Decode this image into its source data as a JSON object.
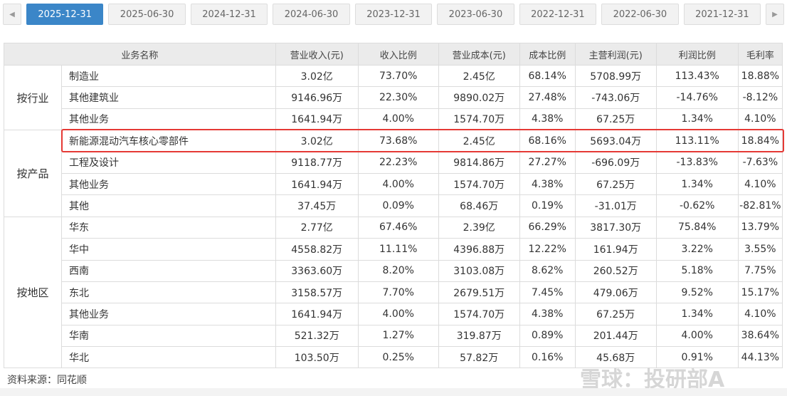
{
  "tabs": {
    "prev": "◀",
    "next": "▶",
    "items": [
      "2025-12-31",
      "2025-06-30",
      "2024-12-31",
      "2024-06-30",
      "2023-12-31",
      "2023-06-30",
      "2022-12-31",
      "2022-06-30",
      "2021-12-31"
    ],
    "active": "2025-12-31"
  },
  "table": {
    "headers": [
      "业务名称",
      "营业收入(元)",
      "收入比例",
      "营业成本(元)",
      "成本比例",
      "主营利润(元)",
      "利润比例",
      "毛利率"
    ],
    "groups": [
      {
        "label": "按行业",
        "rows": [
          [
            "制造业",
            "3.02亿",
            "73.70%",
            "2.45亿",
            "68.14%",
            "5708.99万",
            "113.43%",
            "18.88%"
          ],
          [
            "其他建筑业",
            "9146.96万",
            "22.30%",
            "9890.02万",
            "27.48%",
            "-743.06万",
            "-14.76%",
            "-8.12%"
          ],
          [
            "其他业务",
            "1641.94万",
            "4.00%",
            "1574.70万",
            "4.38%",
            "67.25万",
            "1.34%",
            "4.10%"
          ]
        ]
      },
      {
        "label": "按产品",
        "rows": [
          [
            "新能源混动汽车核心零部件",
            "3.02亿",
            "73.68%",
            "2.45亿",
            "68.16%",
            "5693.04万",
            "113.11%",
            "18.84%"
          ],
          [
            "工程及设计",
            "9118.77万",
            "22.23%",
            "9814.86万",
            "27.27%",
            "-696.09万",
            "-13.83%",
            "-7.63%"
          ],
          [
            "其他业务",
            "1641.94万",
            "4.00%",
            "1574.70万",
            "4.38%",
            "67.25万",
            "1.34%",
            "4.10%"
          ],
          [
            "其他",
            "37.45万",
            "0.09%",
            "68.46万",
            "0.19%",
            "-31.01万",
            "-0.62%",
            "-82.81%"
          ]
        ]
      },
      {
        "label": "按地区",
        "rows": [
          [
            "华东",
            "2.77亿",
            "67.46%",
            "2.39亿",
            "66.29%",
            "3817.30万",
            "75.84%",
            "13.79%"
          ],
          [
            "华中",
            "4558.82万",
            "11.11%",
            "4396.88万",
            "12.22%",
            "161.94万",
            "3.22%",
            "3.55%"
          ],
          [
            "西南",
            "3363.60万",
            "8.20%",
            "3103.08万",
            "8.62%",
            "260.52万",
            "5.18%",
            "7.75%"
          ],
          [
            "东北",
            "3158.57万",
            "7.70%",
            "2679.51万",
            "7.45%",
            "479.06万",
            "9.52%",
            "15.17%"
          ],
          [
            "其他业务",
            "1641.94万",
            "4.00%",
            "1574.70万",
            "4.38%",
            "67.25万",
            "1.34%",
            "4.10%"
          ],
          [
            "华南",
            "521.32万",
            "1.27%",
            "319.87万",
            "0.89%",
            "201.44万",
            "4.00%",
            "38.64%"
          ],
          [
            "华北",
            "103.50万",
            "0.25%",
            "57.82万",
            "0.16%",
            "45.68万",
            "0.91%",
            "44.13%"
          ]
        ]
      }
    ]
  },
  "highlight_color": "#e53935",
  "source": "资料来源：同花顺",
  "watermark": "雪球：投研部A"
}
